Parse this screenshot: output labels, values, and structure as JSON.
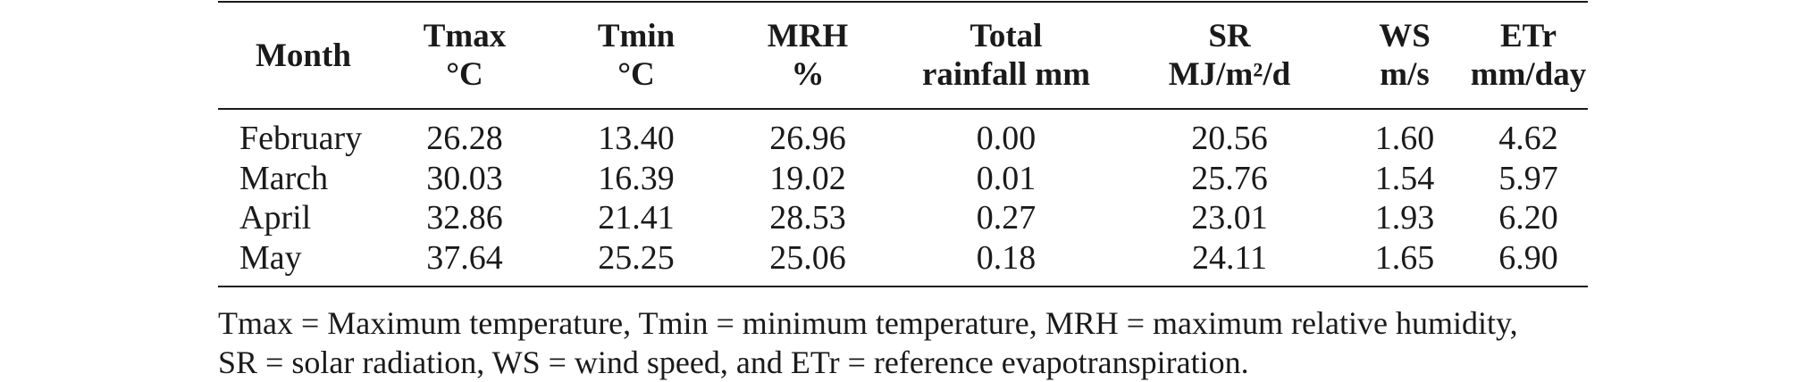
{
  "table": {
    "headers": [
      {
        "line1": "Month",
        "line2": ""
      },
      {
        "line1": "Tmax",
        "line2": "°C"
      },
      {
        "line1": "Tmin",
        "line2": "°C"
      },
      {
        "line1": "MRH",
        "line2": "%"
      },
      {
        "line1": "Total",
        "line2": "rainfall mm"
      },
      {
        "line1": "SR",
        "line2": "MJ/m²/d"
      },
      {
        "line1": "WS",
        "line2": "m/s"
      },
      {
        "line1": "ETr",
        "line2": "mm/day"
      }
    ],
    "rows": [
      [
        "February",
        "26.28",
        "13.40",
        "26.96",
        "0.00",
        "20.56",
        "1.60",
        "4.62"
      ],
      [
        "March",
        "30.03",
        "16.39",
        "19.02",
        "0.01",
        "25.76",
        "1.54",
        "5.97"
      ],
      [
        "April",
        "32.86",
        "21.41",
        "28.53",
        "0.27",
        "23.01",
        "1.93",
        "6.20"
      ],
      [
        "May",
        "37.64",
        "25.25",
        "25.06",
        "0.18",
        "24.11",
        "1.65",
        "6.90"
      ]
    ]
  },
  "footnote": {
    "line1": "Tmax = Maximum temperature, Tmin = minimum temperature, MRH = maximum relative humidity,",
    "line2": "SR = solar radiation, WS = wind speed, and ETr = reference evapotranspiration."
  }
}
